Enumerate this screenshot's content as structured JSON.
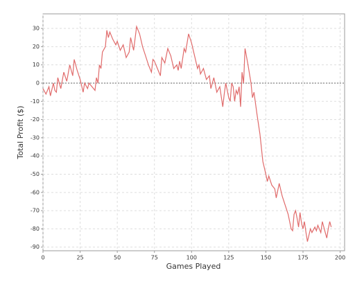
{
  "chart_data": {
    "type": "line",
    "x_label": "Games Played",
    "y_label": "Total Profit ($)",
    "xlim": [
      0,
      203
    ],
    "ylim": [
      -92,
      38
    ],
    "xticks": [
      0,
      25,
      50,
      75,
      100,
      125,
      150,
      175,
      200
    ],
    "yticks": [
      -90,
      -80,
      -70,
      -60,
      -50,
      -40,
      -30,
      -20,
      -10,
      0,
      10,
      20,
      30
    ],
    "grid": true,
    "zero_line": true,
    "series": [
      {
        "color": "#e06a6a",
        "x": [
          0,
          2,
          4,
          5,
          7,
          8,
          9,
          10,
          12,
          14,
          16,
          18,
          20,
          21,
          23,
          25,
          27,
          28,
          30,
          31,
          33,
          35,
          36,
          37,
          38,
          39,
          40,
          42,
          43,
          44,
          45,
          47,
          49,
          50,
          52,
          54,
          56,
          58,
          59,
          61,
          63,
          65,
          67,
          69,
          71,
          73,
          74,
          75,
          77,
          79,
          80,
          82,
          84,
          86,
          88,
          90,
          91,
          92,
          93,
          95,
          96,
          98,
          100,
          102,
          104,
          105,
          106,
          108,
          110,
          112,
          113,
          115,
          117,
          119,
          121,
          122,
          123,
          125,
          126,
          127,
          128,
          129,
          130,
          131,
          132,
          133,
          134,
          135,
          136,
          138,
          140,
          141,
          142,
          144,
          146,
          148,
          150,
          151,
          152,
          154,
          156,
          157,
          159,
          161,
          163,
          165,
          167,
          168,
          169,
          170,
          171,
          172,
          173,
          174,
          175,
          176,
          177,
          178,
          180,
          181,
          183,
          184,
          185,
          187,
          188,
          190,
          191,
          192,
          193,
          194
        ],
        "values": [
          -3,
          -6,
          -2,
          -7,
          0,
          -4,
          -5,
          3,
          -3,
          6,
          1,
          10,
          4,
          13,
          7,
          2,
          -5,
          0,
          -3,
          0,
          -2,
          -4,
          3,
          0,
          10,
          8,
          17,
          20,
          29,
          25,
          28,
          24,
          21,
          23,
          18,
          21,
          14,
          17,
          25,
          18,
          31,
          27,
          20,
          15,
          10,
          6,
          13,
          12,
          8,
          4,
          14,
          11,
          19,
          15,
          8,
          10,
          7,
          12,
          8,
          19,
          17,
          27,
          22,
          15,
          8,
          10,
          5,
          8,
          2,
          4,
          -3,
          3,
          -5,
          -2,
          -13,
          -6,
          0,
          -8,
          -10,
          0,
          -2,
          -10,
          -4,
          -6,
          -2,
          -13,
          6,
          0,
          19,
          10,
          0,
          -8,
          -5,
          -17,
          -28,
          -43,
          -50,
          -54,
          -51,
          -56,
          -58,
          -63,
          -55,
          -62,
          -67,
          -72,
          -80,
          -81,
          -72,
          -70,
          -74,
          -79,
          -71,
          -77,
          -80,
          -76,
          -82,
          -87,
          -80,
          -82,
          -79,
          -81,
          -78,
          -82,
          -76,
          -82,
          -85,
          -80,
          -76,
          -79
        ]
      }
    ]
  }
}
